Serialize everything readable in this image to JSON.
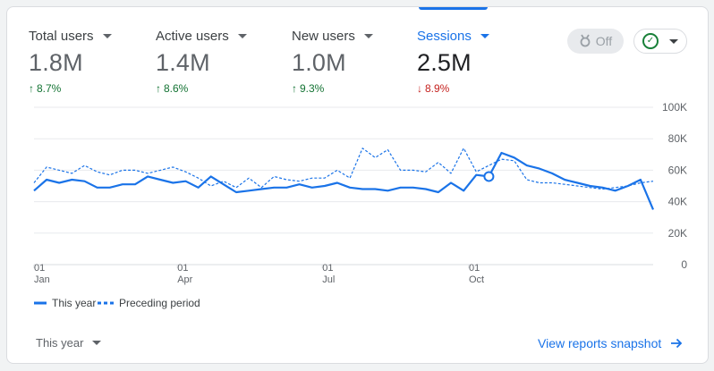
{
  "metrics": [
    {
      "name": "Total users",
      "value": "1.8M",
      "delta": "8.7%",
      "dir": "up",
      "arrow": "↑"
    },
    {
      "name": "Active users",
      "value": "1.4M",
      "delta": "8.6%",
      "dir": "up",
      "arrow": "↑"
    },
    {
      "name": "New users",
      "value": "1.0M",
      "delta": "9.3%",
      "dir": "up",
      "arrow": "↑"
    },
    {
      "name": "Sessions",
      "value": "2.5M",
      "delta": "8.9%",
      "dir": "down",
      "arrow": "↓"
    }
  ],
  "toolbar": {
    "off_label": "Off"
  },
  "legend": {
    "this_year": "This year",
    "preceding": "Preceding period"
  },
  "footer": {
    "period_label": "This year",
    "snapshot_label": "View reports snapshot"
  },
  "colors": {
    "accent": "#1a73e8",
    "up": "#137333",
    "down": "#c5221f"
  },
  "chart_data": {
    "type": "line",
    "ylim": [
      0,
      100000
    ],
    "yticks": [
      "0",
      "20K",
      "40K",
      "60K",
      "80K",
      "100K"
    ],
    "xticks": [
      {
        "day": 0,
        "label1": "01",
        "label2": "Jan"
      },
      {
        "day": 90,
        "label1": "01",
        "label2": "Apr"
      },
      {
        "day": 181,
        "label1": "01",
        "label2": "Jul"
      },
      {
        "day": 273,
        "label1": "01",
        "label2": "Oct"
      }
    ],
    "grid": true,
    "highlight_index": 36,
    "series": [
      {
        "name": "This year",
        "style": "solid",
        "values": [
          47000,
          54000,
          52000,
          54000,
          53000,
          49000,
          49000,
          51000,
          51000,
          56000,
          54000,
          52000,
          53000,
          49000,
          56000,
          51000,
          46000,
          47000,
          48000,
          49000,
          49000,
          51000,
          49000,
          50000,
          52000,
          49000,
          48000,
          48000,
          47000,
          49000,
          49000,
          48000,
          46000,
          52000,
          47000,
          57000,
          56000,
          71000,
          68000,
          63000,
          61000,
          58000,
          54000,
          52000,
          50000,
          49000,
          47000,
          50000,
          54000,
          35000
        ]
      },
      {
        "name": "Preceding period",
        "style": "dashed",
        "values": [
          52000,
          62000,
          60000,
          58000,
          63000,
          59000,
          57000,
          60000,
          60000,
          58000,
          60000,
          62000,
          59000,
          55000,
          50000,
          53000,
          49000,
          55000,
          49000,
          56000,
          54000,
          53000,
          55000,
          55000,
          60000,
          55000,
          74000,
          68000,
          73000,
          60000,
          60000,
          59000,
          65000,
          58000,
          74000,
          59000,
          63000,
          67000,
          66000,
          54000,
          52000,
          52000,
          51000,
          50000,
          49000,
          48000,
          49000,
          50000,
          52000,
          53000
        ]
      }
    ]
  }
}
